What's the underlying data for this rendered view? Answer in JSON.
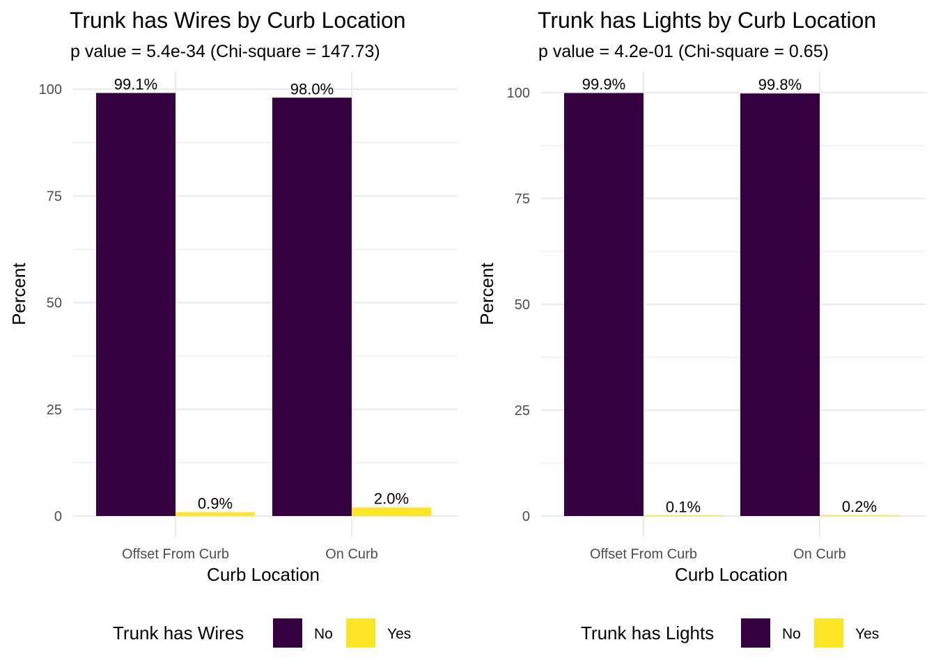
{
  "chart_data": [
    {
      "type": "bar",
      "title": "Trunk has Wires by Curb Location",
      "subtitle": "p value = 5.4e-34 (Chi-square = 147.73)",
      "xlabel": "Curb Location",
      "ylabel": "Percent",
      "categories": [
        "Offset From Curb",
        "On Curb"
      ],
      "series": [
        {
          "name": "No",
          "values": [
            99.1,
            98.0
          ],
          "labels": [
            "99.1%",
            "98.0%"
          ]
        },
        {
          "name": "Yes",
          "values": [
            0.9,
            2.0
          ],
          "labels": [
            "0.9%",
            "2.0%"
          ]
        }
      ],
      "yticks": [
        "0",
        "25",
        "50",
        "75",
        "100"
      ],
      "ylim": [
        0,
        104
      ],
      "legend_title": "Trunk has Wires",
      "legend_position": "bottom",
      "grid": true
    },
    {
      "type": "bar",
      "title": "Trunk has Lights by Curb Location",
      "subtitle": "p value = 4.2e-01 (Chi-square = 0.65)",
      "xlabel": "Curb Location",
      "ylabel": "Percent",
      "categories": [
        "Offset From Curb",
        "On Curb"
      ],
      "series": [
        {
          "name": "No",
          "values": [
            99.9,
            99.8
          ],
          "labels": [
            "99.9%",
            "99.8%"
          ]
        },
        {
          "name": "Yes",
          "values": [
            0.1,
            0.2
          ],
          "labels": [
            "0.1%",
            "0.2%"
          ]
        }
      ],
      "yticks": [
        "0",
        "25",
        "50",
        "75",
        "100"
      ],
      "ylim": [
        0,
        104.9
      ],
      "legend_title": "Trunk has Lights",
      "legend_position": "bottom",
      "grid": true
    }
  ],
  "colors": {
    "No": "#35003f",
    "Yes": "#fde725",
    "grid": "#ebebeb"
  }
}
